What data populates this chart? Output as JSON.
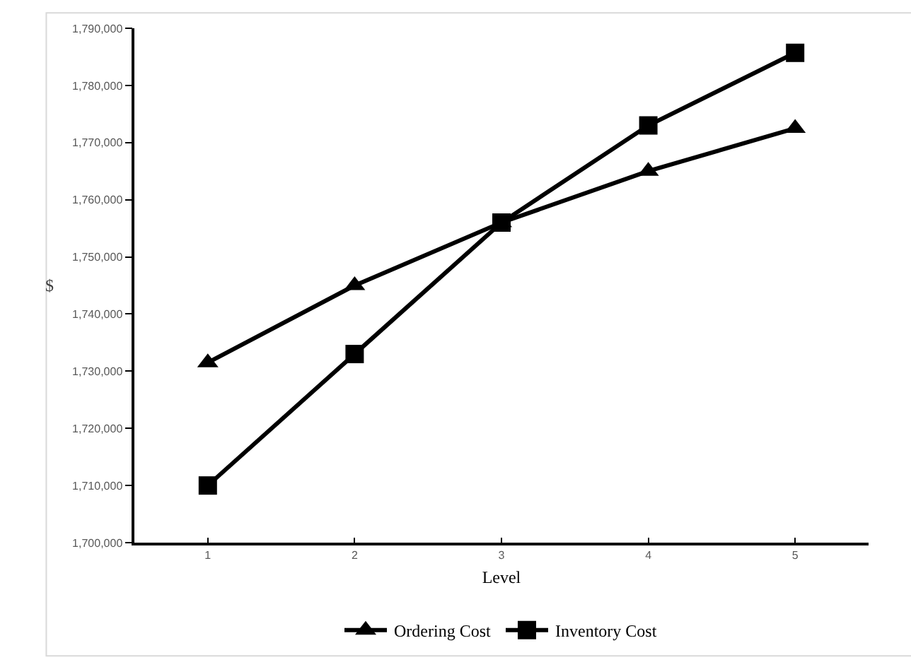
{
  "chart_data": {
    "type": "line",
    "xlabel": "Level",
    "ylabel": "$",
    "categories": [
      "1",
      "2",
      "3",
      "4",
      "5"
    ],
    "series": [
      {
        "name": "Ordering Cost",
        "color": "#000000",
        "marker": "triangle",
        "values": [
          1731500,
          1745000,
          1756000,
          1765000,
          1772500
        ]
      },
      {
        "name": "Inventory Cost",
        "color": "#000000",
        "marker": "square",
        "values": [
          1710000,
          1733000,
          1756000,
          1773000,
          1785700
        ]
      }
    ],
    "ylim": [
      1700000,
      1790000
    ],
    "yticks": [
      {
        "value": 1700000,
        "label": "1,700,000"
      },
      {
        "value": 1710000,
        "label": "1,710,000"
      },
      {
        "value": 1720000,
        "label": "1,720,000"
      },
      {
        "value": 1730000,
        "label": "1,730,000"
      },
      {
        "value": 1740000,
        "label": "1,740,000"
      },
      {
        "value": 1750000,
        "label": "1,750,000"
      },
      {
        "value": 1760000,
        "label": "1,760,000"
      },
      {
        "value": 1770000,
        "label": "1,770,000"
      },
      {
        "value": 1780000,
        "label": "1,780,000"
      },
      {
        "value": 1790000,
        "label": "1,790,000"
      }
    ],
    "legend": "bottom",
    "line_style": "solid"
  }
}
